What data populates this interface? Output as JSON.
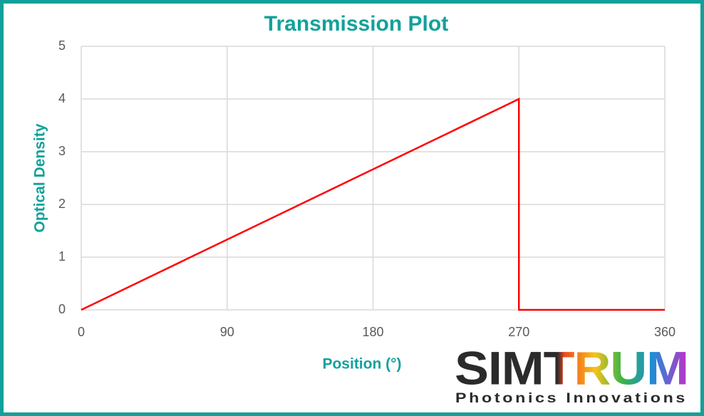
{
  "chart_data": {
    "type": "line",
    "title": "Transmission Plot",
    "x_label": "Position (°)",
    "y_label": "Optical Density",
    "x": [
      0,
      270,
      270,
      360
    ],
    "values": [
      0,
      4,
      0,
      0
    ],
    "color": "#ff0000",
    "xlim": [
      0,
      360
    ],
    "xticks": [
      0,
      90,
      180,
      270,
      360
    ],
    "ylim": [
      0,
      5
    ],
    "yticks": [
      0,
      1,
      2,
      3,
      4,
      5
    ],
    "grid": true
  },
  "logo": {
    "name": "SIMTRUM",
    "tagline": "Photonics Innovations"
  }
}
